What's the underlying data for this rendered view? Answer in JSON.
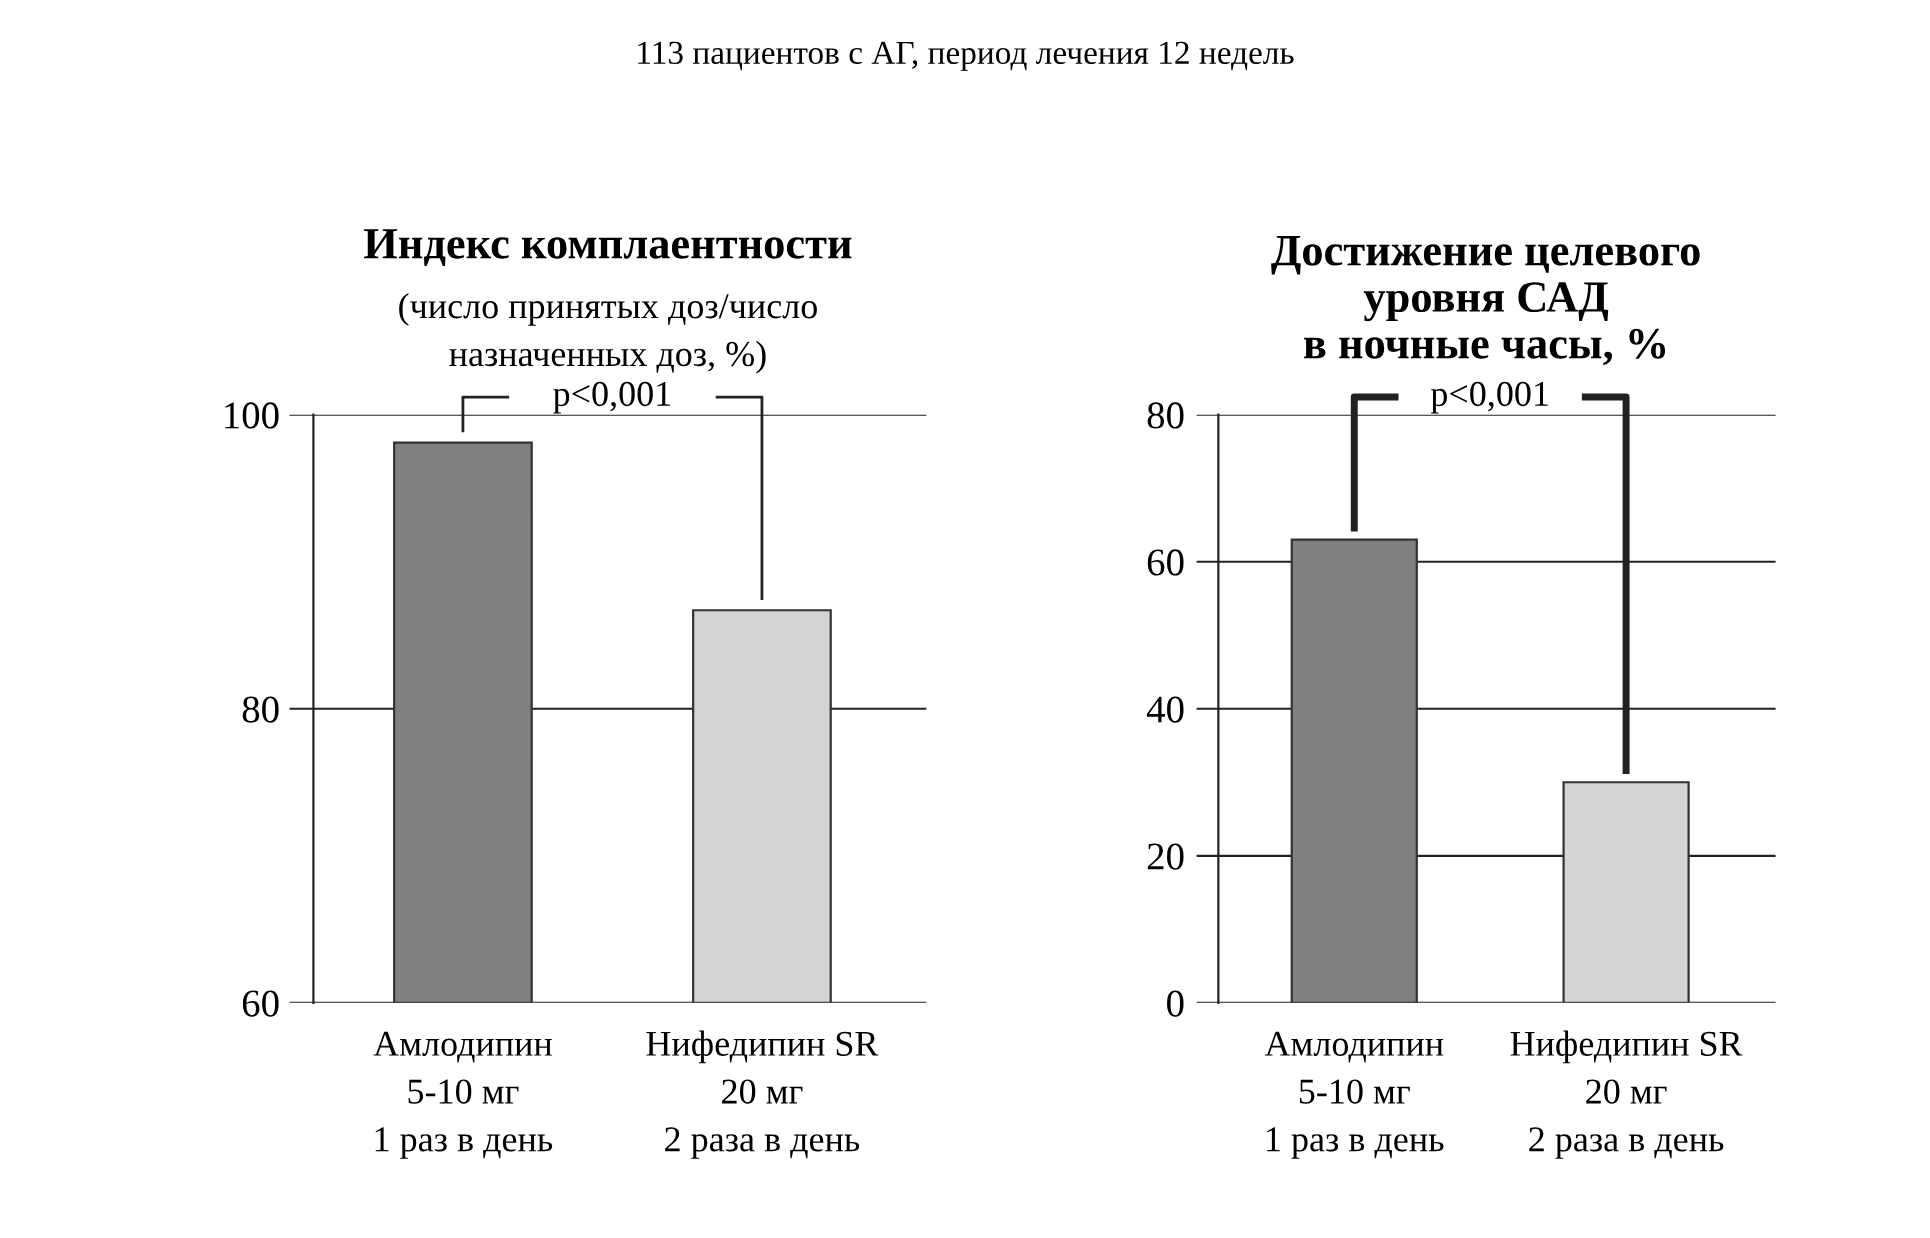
{
  "chart_data": [
    {
      "type": "bar",
      "title": "Индекс комплаентности",
      "subtitle": "(число принятых доз/число\nназначенных доз, %)",
      "annotations": [
        "113 пациентов с АГ, период лечения 12 недель",
        "p<0,001"
      ],
      "categories": [
        "Амлодипин\n5-10 мг\n1 раз в день",
        "Нифедипин SR\n20 мг\n2 раза в день"
      ],
      "values": [
        98.1,
        86.7
      ],
      "colors": [
        "#808083",
        "#d3d4d6"
      ],
      "ylim": [
        60,
        100
      ],
      "yticks": [
        60,
        80,
        100
      ],
      "grid": "y"
    },
    {
      "type": "bar",
      "title": "Достижение целевого\nуровня САД\nв ночные часы, %",
      "annotations": [
        "p<0,001"
      ],
      "categories": [
        "Амлодипин\n5-10 мг\n1 раз в день",
        "Нифедипин SR\n20 мг\n2 раза в день"
      ],
      "values": [
        63,
        30
      ],
      "colors": [
        "#808083",
        "#d3d4d6"
      ],
      "ylim": [
        0,
        80
      ],
      "yticks": [
        0,
        20,
        40,
        60,
        80
      ],
      "grid": "y"
    }
  ]
}
